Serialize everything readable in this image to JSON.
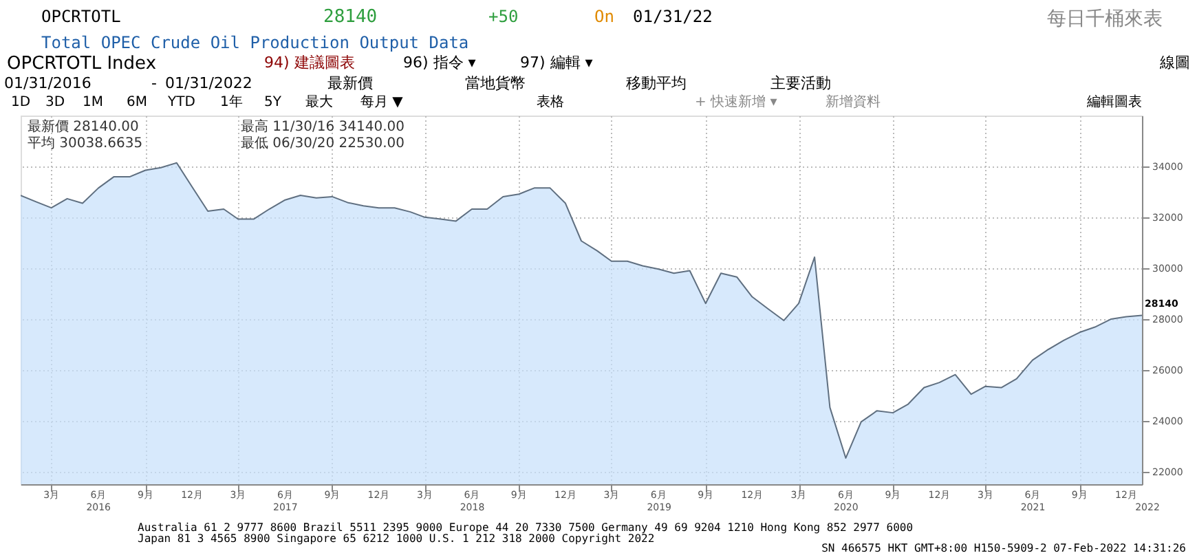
{
  "chart_data": {
    "type": "area",
    "title": "Total OPEC Crude Oil Production Output Data",
    "x": [
      "2016-01",
      "2016-02",
      "2016-03",
      "2016-04",
      "2016-05",
      "2016-06",
      "2016-07",
      "2016-08",
      "2016-09",
      "2016-10",
      "2016-11",
      "2016-12",
      "2017-01",
      "2017-02",
      "2017-03",
      "2017-04",
      "2017-05",
      "2017-06",
      "2017-07",
      "2017-08",
      "2017-09",
      "2017-10",
      "2017-11",
      "2017-12",
      "2018-01",
      "2018-02",
      "2018-03",
      "2018-04",
      "2018-05",
      "2018-06",
      "2018-07",
      "2018-08",
      "2018-09",
      "2018-10",
      "2018-11",
      "2018-12",
      "2019-01",
      "2019-02",
      "2019-03",
      "2019-04",
      "2019-05",
      "2019-06",
      "2019-07",
      "2019-08",
      "2019-09",
      "2019-10",
      "2019-11",
      "2019-12",
      "2020-01",
      "2020-02",
      "2020-03",
      "2020-04",
      "2020-05",
      "2020-06",
      "2020-07",
      "2020-08",
      "2020-09",
      "2020-10",
      "2020-11",
      "2020-12",
      "2021-01",
      "2021-02",
      "2021-03",
      "2021-04",
      "2021-05",
      "2021-06",
      "2021-07",
      "2021-08",
      "2021-09",
      "2021-10",
      "2021-11",
      "2021-12",
      "2022-01"
    ],
    "series": [
      {
        "color": "#c6e0fb",
        "values": [
          32860,
          32600,
          32370,
          32730,
          32550,
          33150,
          33590,
          33590,
          33850,
          33950,
          34140,
          33200,
          32240,
          32320,
          31930,
          31930,
          32320,
          32680,
          32860,
          32760,
          32810,
          32580,
          32450,
          32370,
          32370,
          32210,
          32000,
          31930,
          31850,
          32320,
          32320,
          32810,
          32910,
          33150,
          33150,
          32550,
          31070,
          30680,
          30270,
          30270,
          30090,
          29960,
          29800,
          29900,
          28610,
          29800,
          29650,
          28870,
          28400,
          27940,
          28610,
          30430,
          24520,
          22530,
          23950,
          24390,
          24310,
          24650,
          25300,
          25500,
          25810,
          25040,
          25350,
          25300,
          25650,
          26380,
          26790,
          27160,
          27470,
          27680,
          27990,
          28090,
          28140
        ]
      }
    ],
    "xlim": [
      "2016-01",
      "2022-01"
    ],
    "xticks": [
      {
        "value": "2016-03",
        "label": "3月"
      },
      {
        "value": "2016-06",
        "label": "6月"
      },
      {
        "value": "2016-09",
        "label": "9月"
      },
      {
        "value": "2016-12",
        "label": "12月"
      },
      {
        "value": "2017-03",
        "label": "3月"
      },
      {
        "value": "2017-06",
        "label": "6月"
      },
      {
        "value": "2017-09",
        "label": "9月"
      },
      {
        "value": "2017-12",
        "label": "12月"
      },
      {
        "value": "2018-03",
        "label": "3月"
      },
      {
        "value": "2018-06",
        "label": "6月"
      },
      {
        "value": "2018-09",
        "label": "9月"
      },
      {
        "value": "2018-12",
        "label": "12月"
      },
      {
        "value": "2019-03",
        "label": "3月"
      },
      {
        "value": "2019-06",
        "label": "6月"
      },
      {
        "value": "2019-09",
        "label": "9月"
      },
      {
        "value": "2019-12",
        "label": "12月"
      },
      {
        "value": "2020-03",
        "label": "3月"
      },
      {
        "value": "2020-06",
        "label": "6月"
      },
      {
        "value": "2020-09",
        "label": "9月"
      },
      {
        "value": "2020-12",
        "label": "12月"
      },
      {
        "value": "2021-03",
        "label": "3月"
      },
      {
        "value": "2021-06",
        "label": "6月"
      },
      {
        "value": "2021-09",
        "label": "9月"
      },
      {
        "value": "2021-12",
        "label": "12月"
      }
    ],
    "ylim": [
      21500,
      36000
    ],
    "yticks": [
      22000,
      24000,
      26000,
      28000,
      30000,
      32000,
      34000
    ],
    "grid": true,
    "annotations": [
      "OPCRTOTL",
      "28140",
      "+50",
      "On",
      "01/31/22",
      "每日千桶來表",
      "OPCRTOTL Index",
      "94) 建議圖表",
      "96) 指令 ▾",
      "97) 編輯 ▾",
      "線圖",
      "01/31/2016",
      "-",
      "01/31/2022",
      "最新價",
      "當地貨幣",
      "移動平均",
      "主要活動",
      "1D",
      "3D",
      "1M",
      "6M",
      "YTD",
      "1年",
      "5Y",
      "最大",
      "每月 ▼",
      "表格",
      "+ 快速新增 ▾",
      "新增資料",
      "編輯圖表",
      "最新價 28140.00",
      "最高 11/30/16 34140.00",
      "平均 30038.6635",
      "最低 06/30/20 22530.00",
      "Australia 61 2 9777 8600 Brazil 5511 2395 9000 Europe 44 20 7330 7500 Germany 49 69 9204 1210 Hong Kong 852 2977 6000",
      "Japan 81 3 4565 8900      Singapore 65 6212 1000      U.S. 1 212 318 2000      Copyright 2022",
      "SN 466575 HKT  GMT+8:00 H150-5909-2 07-Feb-2022 14:31:26",
      "28140",
      "2016",
      "2017",
      "2018",
      "2019",
      "2020",
      "2021",
      "2022"
    ]
  }
}
